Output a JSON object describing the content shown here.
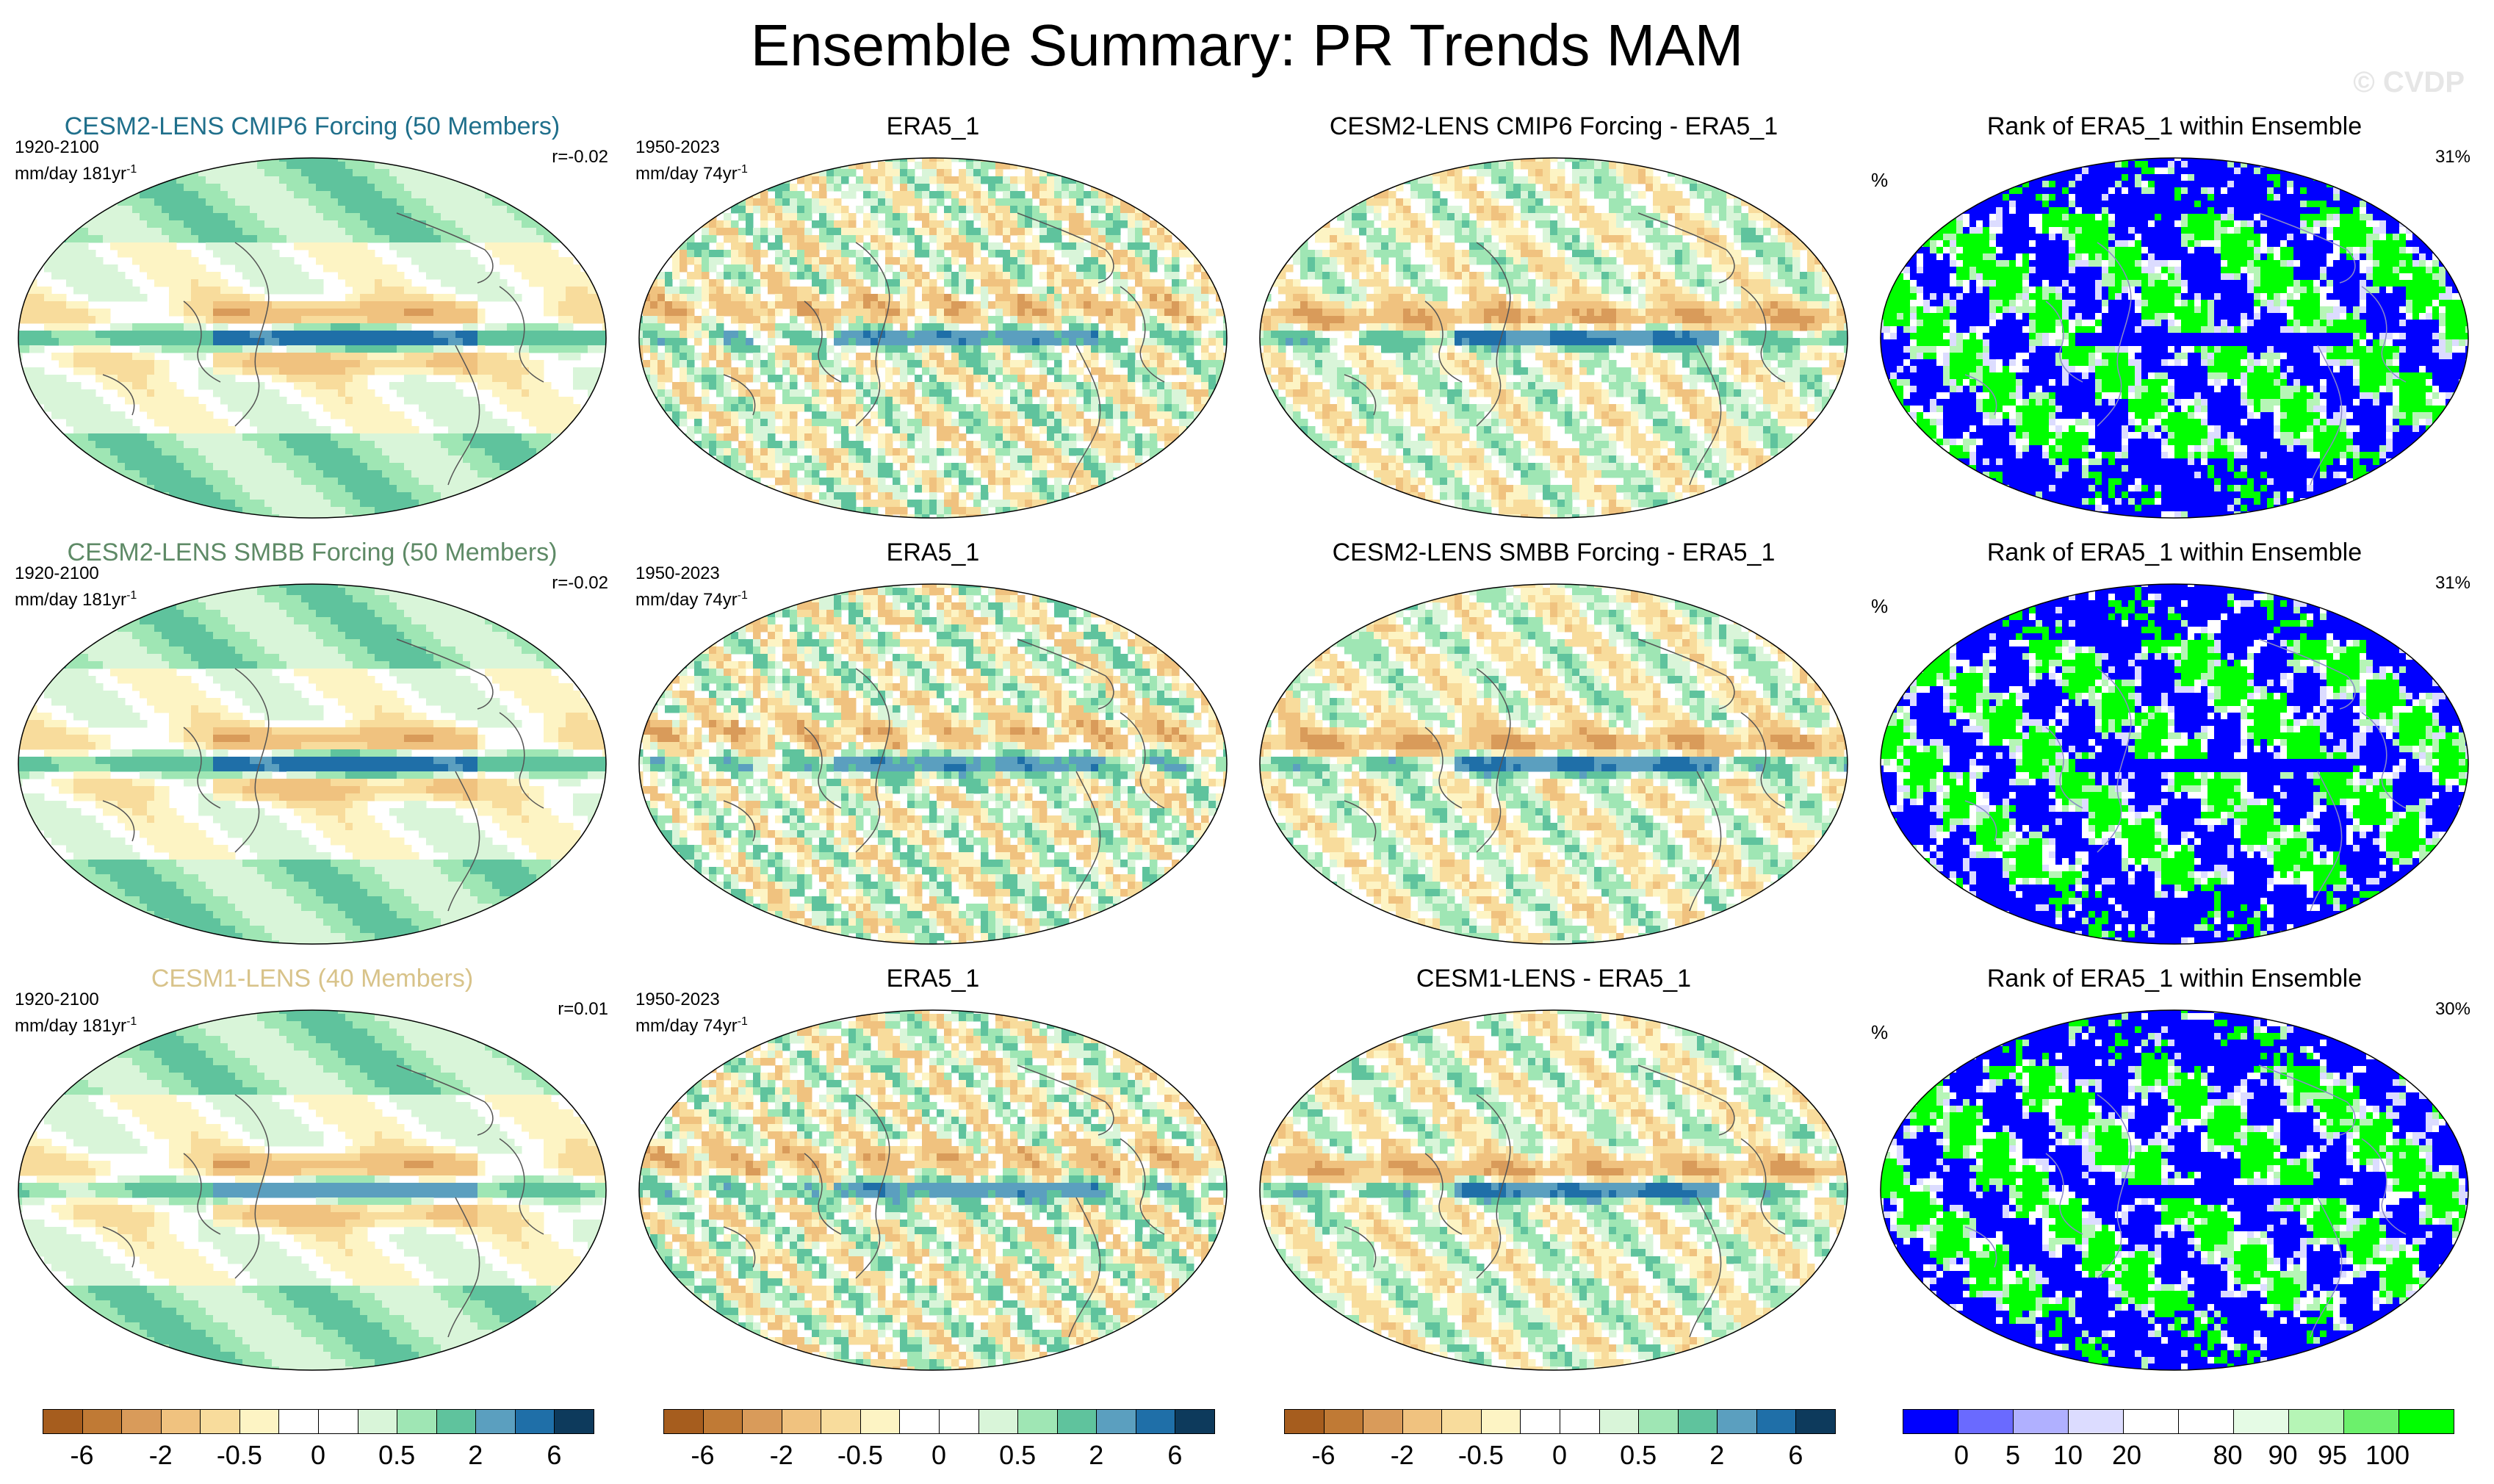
{
  "title": "Ensemble Summary: PR Trends MAM",
  "watermark": "© CVDP",
  "rows": [
    {
      "model_title": "CESM2-LENS CMIP6 Forcing (50 Members)",
      "model_color": "#1f6f8b",
      "model_period": "1920-2100",
      "model_units": "mm/day 181yr",
      "corr": "r=-0.02",
      "obs_title": "ERA5_1",
      "obs_period": "1950-2023",
      "obs_units": "mm/day 74yr",
      "diff_title": "CESM2-LENS CMIP6 Forcing - ERA5_1",
      "rank_title": "Rank of ERA5_1 within Ensemble",
      "rank_pct_label": "%",
      "rank_pct": "31%"
    },
    {
      "model_title": "CESM2-LENS SMBB Forcing (50 Members)",
      "model_color": "#5e8a66",
      "model_period": "1920-2100",
      "model_units": "mm/day 181yr",
      "corr": "r=-0.02",
      "obs_title": "ERA5_1",
      "obs_period": "1950-2023",
      "obs_units": "mm/day 74yr",
      "diff_title": "CESM2-LENS SMBB Forcing - ERA5_1",
      "rank_title": "Rank of ERA5_1 within Ensemble",
      "rank_pct_label": "%",
      "rank_pct": "31%"
    },
    {
      "model_title": "CESM1-LENS (40 Members)",
      "model_color": "#d8c38a",
      "model_period": "1920-2100",
      "model_units": "mm/day 181yr",
      "corr": "r=0.01",
      "obs_title": "ERA5_1",
      "obs_period": "1950-2023",
      "obs_units": "mm/day 74yr",
      "diff_title": "CESM1-LENS - ERA5_1",
      "rank_title": "Rank of ERA5_1 within Ensemble",
      "rank_pct_label": "%",
      "rank_pct": "30%"
    }
  ],
  "units_superscript": "-1",
  "trend_colorbar": {
    "colors": [
      "#a65d1e",
      "#c07a35",
      "#d99b5a",
      "#f0c27f",
      "#f8dc9c",
      "#fdf4c4",
      "#ffffff",
      "#ffffff",
      "#d9f5d9",
      "#9fe6b4",
      "#5fc39d",
      "#5b9fbf",
      "#1f6fa8",
      "#0d3a5c"
    ],
    "labels": [
      "-6",
      "-2",
      "-0.5",
      "0",
      "0.5",
      "2",
      "6"
    ]
  },
  "rank_colorbar": {
    "colors": [
      "#0000ff",
      "#6a6aff",
      "#b0b0ff",
      "#dcdcff",
      "#ffffff",
      "#ffffff",
      "#e5fbe5",
      "#b6f5b6",
      "#6cf06c",
      "#00ff00"
    ],
    "labels": [
      "0",
      "5",
      "10",
      "20",
      "80",
      "90",
      "95",
      "100"
    ]
  }
}
